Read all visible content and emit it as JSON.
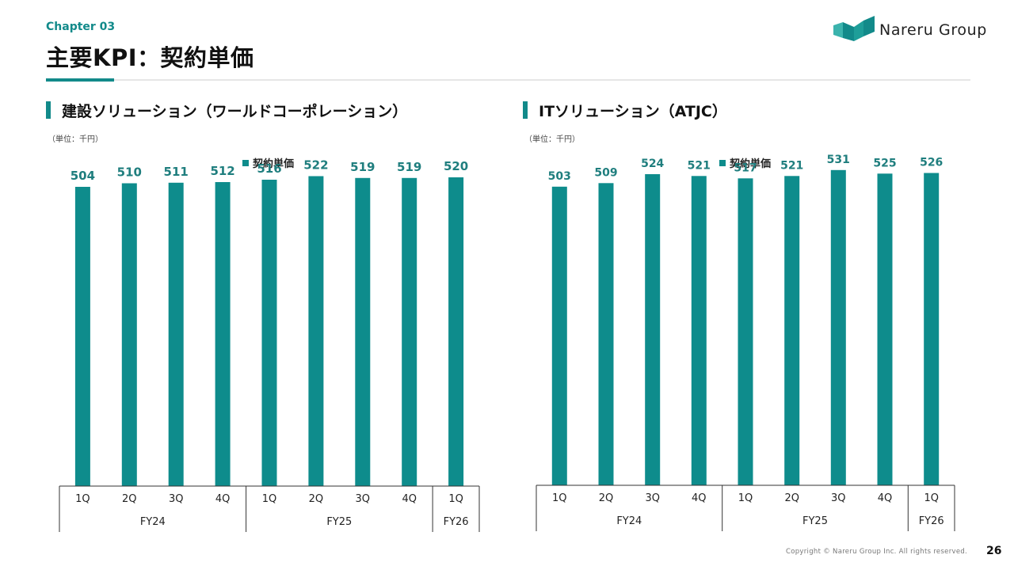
{
  "header": {
    "chapter": "Chapter 03",
    "title": "主要KPI：契約単価"
  },
  "logo": {
    "text": "Nareru Group"
  },
  "colors": {
    "accent": "#128a8a",
    "bar": "#0e8c8c",
    "axis": "#333333"
  },
  "charts": [
    {
      "title": "建設ソリューション（ワールドコーポレーション）",
      "unit": "（単位：千円）",
      "legend": "契約単価"
    },
    {
      "title": "ITソリューション（ATJC）",
      "unit": "（単位：千円）",
      "legend": "契約単価"
    }
  ],
  "chart_data": [
    {
      "type": "bar",
      "title": "建設ソリューション（ワールドコーポレーション）",
      "ylabel": "（単位：千円）",
      "series": [
        {
          "name": "契約単価",
          "values": [
            504,
            510,
            511,
            512,
            516,
            522,
            519,
            519,
            520
          ]
        }
      ],
      "categories": [
        "1Q",
        "2Q",
        "3Q",
        "4Q",
        "1Q",
        "2Q",
        "3Q",
        "4Q",
        "1Q"
      ],
      "groups": [
        {
          "label": "FY24",
          "count": 4
        },
        {
          "label": "FY25",
          "count": 4
        },
        {
          "label": "FY26",
          "count": 1
        }
      ],
      "ylim": [
        0,
        560
      ],
      "legend_position": "top"
    },
    {
      "type": "bar",
      "title": "ITソリューション（ATJC）",
      "ylabel": "（単位：千円）",
      "series": [
        {
          "name": "契約単価",
          "values": [
            503,
            509,
            524,
            521,
            517,
            521,
            531,
            525,
            526
          ]
        }
      ],
      "categories": [
        "1Q",
        "2Q",
        "3Q",
        "4Q",
        "1Q",
        "2Q",
        "3Q",
        "4Q",
        "1Q"
      ],
      "groups": [
        {
          "label": "FY24",
          "count": 4
        },
        {
          "label": "FY25",
          "count": 4
        },
        {
          "label": "FY26",
          "count": 1
        }
      ],
      "ylim": [
        0,
        560
      ],
      "legend_position": "top"
    }
  ],
  "footer": {
    "copyright": "Copyright © Nareru Group Inc. All rights reserved.",
    "page": "26"
  }
}
